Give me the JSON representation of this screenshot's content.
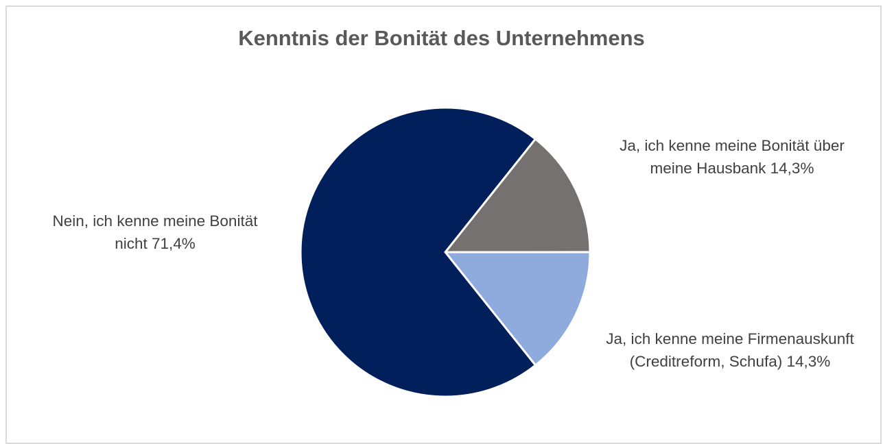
{
  "chart_data": {
    "type": "pie",
    "title": "Kenntnis der Bonität des Unternehmens",
    "categories": [
      "Ja, ich kenne meine Bonität über meine Hausbank",
      "Ja, ich kenne meine Firmenauskunft (Creditreform, Schufa)",
      "Nein, ich kenne meine Bonität nicht"
    ],
    "values": [
      14.3,
      14.3,
      71.4
    ],
    "value_labels": [
      "14,3%",
      "14,3%",
      "71,4%"
    ],
    "colors": [
      "#767171",
      "#8faadc",
      "#001f5b"
    ]
  }
}
